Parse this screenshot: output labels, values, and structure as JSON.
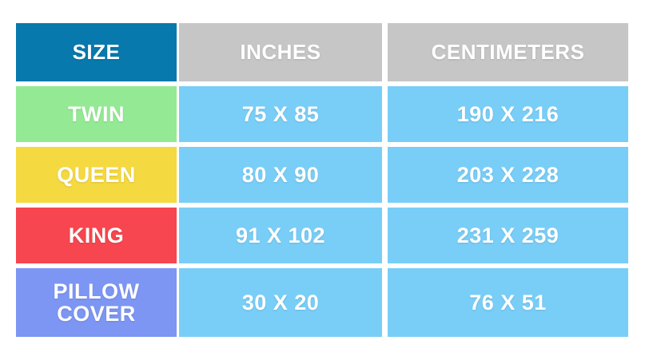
{
  "colors": {
    "background": "#ffffff",
    "header_size_bg": "#0779ad",
    "header_unit_bg": "#c6c6c6",
    "value_cell_bg": "#79cef7",
    "text": "#ffffff"
  },
  "table": {
    "headers": {
      "size": "SIZE",
      "inches": "INCHES",
      "centimeters": "CENTIMETERS"
    },
    "rows": [
      {
        "label": "TWIN",
        "inches": "75 X 85",
        "centimeters": "190 X 216",
        "label_color": "#94ea94"
      },
      {
        "label": "QUEEN",
        "inches": "80 X 90",
        "centimeters": "203 X 228",
        "label_color": "#f5d941"
      },
      {
        "label": "KING",
        "inches": "91 X 102",
        "centimeters": "231 X 259",
        "label_color": "#f7464f"
      },
      {
        "label": "PILLOW COVER",
        "inches": "30 X 20",
        "centimeters": "76 X 51",
        "label_color": "#7d96f4"
      }
    ]
  },
  "chart_data": {
    "type": "table",
    "columns": [
      "SIZE",
      "INCHES",
      "CENTIMETERS"
    ],
    "rows": [
      [
        "TWIN",
        "75 X 85",
        "190 X 216"
      ],
      [
        "QUEEN",
        "80 X 90",
        "203 X 228"
      ],
      [
        "KING",
        "91 X 102",
        "231 X 259"
      ],
      [
        "PILLOW COVER",
        "30 X 20",
        "76 X 51"
      ]
    ],
    "notes": "Bed sheet size conversion table; first column row headers are color coded (green, yellow, red, periwinkle); value cells light blue; column headers: SIZE on dark blue, INCHES and CENTIMETERS on gray."
  }
}
